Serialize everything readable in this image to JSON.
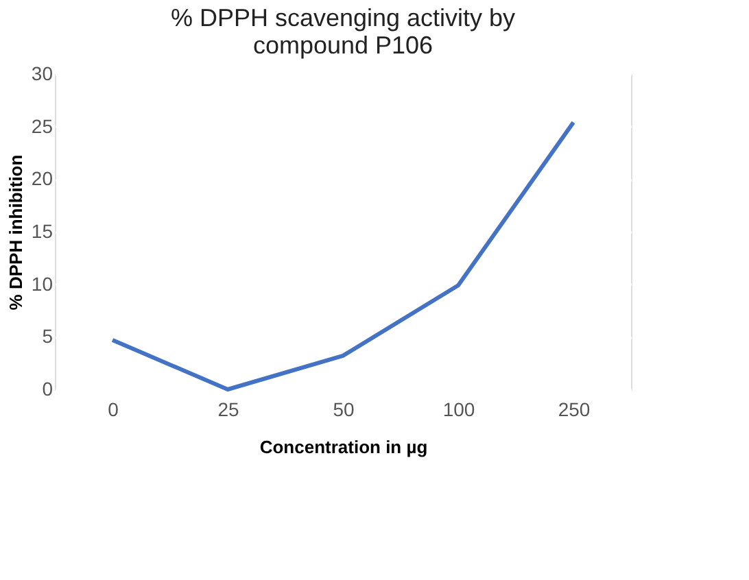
{
  "chart_data": {
    "type": "line",
    "title": "% DPPH scavenging activity by compound P106",
    "xlabel": "Concentration  in µg",
    "ylabel": "% DPPH inhibition",
    "categories": [
      "0",
      "25",
      "50",
      "100",
      "250"
    ],
    "series": [
      {
        "color": "#4472c4",
        "values": [
          4.7,
          0,
          3.2,
          9.9,
          25.4
        ]
      }
    ],
    "ylim": [
      0,
      30
    ],
    "yticks": [
      0,
      5,
      10,
      15,
      20,
      25,
      30
    ],
    "grid": true,
    "marker": "none",
    "line_style": "solid"
  }
}
